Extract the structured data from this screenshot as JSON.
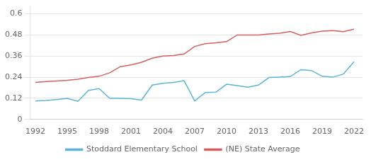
{
  "chart_data": {
    "type": "line",
    "x": [
      1992,
      1993,
      1994,
      1995,
      1996,
      1997,
      1998,
      1999,
      2000,
      2001,
      2002,
      2003,
      2004,
      2005,
      2006,
      2007,
      2008,
      2009,
      2010,
      2011,
      2012,
      2013,
      2014,
      2015,
      2016,
      2017,
      2018,
      2019,
      2020,
      2021,
      2022
    ],
    "series": [
      {
        "name": "Stoddard Elementary School",
        "color": "#5ab4d6",
        "values": [
          0.105,
          0.108,
          0.113,
          0.12,
          0.103,
          0.165,
          0.175,
          0.12,
          0.12,
          0.118,
          0.11,
          0.195,
          0.205,
          0.21,
          0.22,
          0.105,
          0.153,
          0.155,
          0.2,
          0.192,
          0.183,
          0.195,
          0.238,
          0.24,
          0.243,
          0.283,
          0.278,
          0.245,
          0.24,
          0.258,
          0.328
        ]
      },
      {
        "name": "(NE) State Average",
        "color": "#d45f5f",
        "values": [
          0.21,
          0.215,
          0.218,
          0.222,
          0.228,
          0.238,
          0.245,
          0.265,
          0.3,
          0.31,
          0.325,
          0.348,
          0.36,
          0.363,
          0.372,
          0.415,
          0.43,
          0.435,
          0.442,
          0.48,
          0.48,
          0.48,
          0.486,
          0.49,
          0.5,
          0.478,
          0.492,
          0.502,
          0.505,
          0.499,
          0.513
        ]
      }
    ],
    "xlim": [
      1991.5,
      2022.8
    ],
    "xticks": [
      1992,
      1995,
      1998,
      2001,
      2004,
      2007,
      2010,
      2013,
      2016,
      2019,
      2022
    ],
    "ylim": [
      0,
      0.64
    ],
    "yticks": [
      0,
      0.12,
      0.24,
      0.36,
      0.48,
      0.6
    ],
    "grid": "y",
    "legend": "bottom"
  }
}
